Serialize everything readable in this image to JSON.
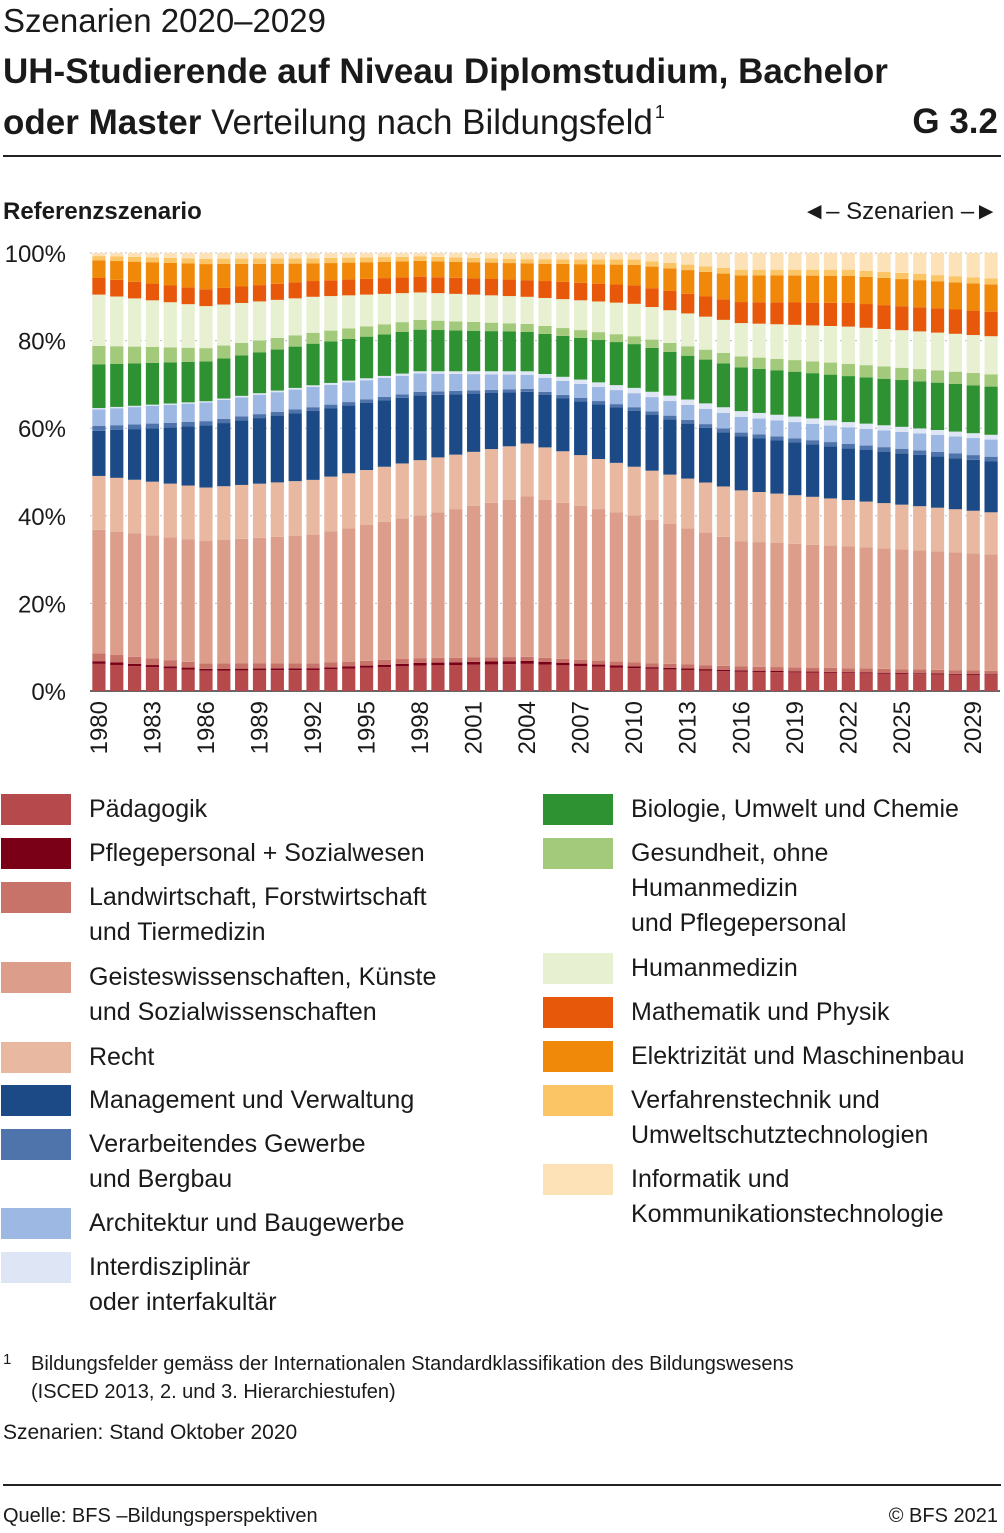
{
  "header": {
    "supertitle": "Szenarien 2020–2029",
    "title_line1": "UH-Studierende auf Niveau Diplomstudium, Bachelor",
    "title_bold2": "oder Master",
    "subtitle": "Verteilung nach Bildungsfeld",
    "footnote_mark": "1",
    "code": "G 3.2"
  },
  "panel_label": "Referenzszenario",
  "scenario_marker": "◄– Szenarien –►",
  "chart_data": {
    "type": "bar",
    "stacked": true,
    "ylim": [
      0,
      100
    ],
    "yticks": [
      "0%",
      "20%",
      "40%",
      "60%",
      "80%",
      "100%"
    ],
    "xtick_labels": [
      "1980",
      "1983",
      "1986",
      "1989",
      "1992",
      "1995",
      "1998",
      "2001",
      "2004",
      "2007",
      "2010",
      "2013",
      "2016",
      "2019",
      "2022",
      "2025",
      "2029"
    ],
    "scenario_start": 2020,
    "grid": true,
    "categories": [
      1980,
      1981,
      1982,
      1983,
      1984,
      1985,
      1986,
      1987,
      1988,
      1989,
      1990,
      1991,
      1992,
      1993,
      1994,
      1995,
      1996,
      1997,
      1998,
      1999,
      2000,
      2001,
      2002,
      2003,
      2004,
      2005,
      2006,
      2007,
      2008,
      2009,
      2010,
      2011,
      2012,
      2013,
      2014,
      2015,
      2016,
      2017,
      2018,
      2019,
      2020,
      2021,
      2022,
      2023,
      2024,
      2025,
      2026,
      2027,
      2028,
      2029,
      2030
    ],
    "keyframes": {
      "years": [
        1980,
        1986,
        1992,
        1998,
        2004,
        2010,
        2016,
        2022,
        2030
      ],
      "series": [
        {
          "name": "Pädagogik",
          "color": "#b5494c",
          "values": [
            6.2,
            4.6,
            4.8,
            5.8,
            6.2,
            5.2,
            4.4,
            4.1,
            3.6
          ]
        },
        {
          "name": "Pflegepersonal + Sozialwesen",
          "color": "#7a0017",
          "values": [
            0.6,
            0.4,
            0.4,
            0.6,
            0.7,
            0.4,
            0.3,
            0.2,
            0.2
          ]
        },
        {
          "name": "Landwirtschaft, Forstwirtschaft und Tiermedizin",
          "color": "#c8736a",
          "values": [
            1.8,
            1.2,
            1.1,
            1.1,
            0.9,
            0.9,
            0.9,
            0.9,
            0.8
          ]
        },
        {
          "name": "Geisteswissenschaften, Künste und Sozialwissenschaften",
          "color": "#dc9e8b",
          "values": [
            28.2,
            27.7,
            29.4,
            32.6,
            36.6,
            33.6,
            28.6,
            27.8,
            26.6
          ]
        },
        {
          "name": "Recht",
          "color": "#e8b8a0",
          "values": [
            12.3,
            12.1,
            12.5,
            12.6,
            12.1,
            11.1,
            11.6,
            10.6,
            9.6
          ]
        },
        {
          "name": "Management und Verwaltung",
          "color": "#1c4a86",
          "values": [
            10.3,
            14.0,
            15.8,
            14.8,
            11.8,
            12.8,
            12.3,
            11.8,
            11.6
          ]
        },
        {
          "name": "Verarbeitendes Gewerbe und Bergbau",
          "color": "#4f74ac",
          "values": [
            1.1,
            1.0,
            0.8,
            0.8,
            0.7,
            0.8,
            0.9,
            1.0,
            1.1
          ]
        },
        {
          "name": "Architektur und Baugewerbe",
          "color": "#9db8e2",
          "values": [
            3.8,
            4.2,
            4.6,
            4.2,
            3.2,
            3.2,
            3.6,
            3.8,
            3.9
          ]
        },
        {
          "name": "Interdisziplinär oder interfakultär",
          "color": "#dee6f5",
          "values": [
            0.3,
            0.3,
            0.4,
            0.5,
            0.8,
            1.2,
            1.3,
            1.2,
            1.1
          ]
        },
        {
          "name": "Biologie, Umwelt und Chemie",
          "color": "#2e9232",
          "values": [
            10.0,
            9.0,
            9.5,
            9.5,
            9.0,
            10.0,
            10.0,
            10.5,
            11.0
          ]
        },
        {
          "name": "Gesundheit, ohne Humanmedizin und Pflegepersonal",
          "color": "#a3c97a",
          "values": [
            4.2,
            3.0,
            2.5,
            2.2,
            1.8,
            1.8,
            2.5,
            2.8,
            2.8
          ]
        },
        {
          "name": "Humanmedizin",
          "color": "#e8f0d2",
          "values": [
            11.7,
            9.5,
            8.2,
            6.3,
            6.2,
            7.4,
            7.6,
            8.5,
            8.7
          ]
        },
        {
          "name": "Mathematik und Physik",
          "color": "#e8580a",
          "values": [
            3.8,
            3.8,
            3.6,
            3.6,
            3.8,
            4.2,
            4.8,
            5.4,
            5.6
          ]
        },
        {
          "name": "Elektrizität und Maschinenbau",
          "color": "#f0880a",
          "values": [
            4.0,
            5.7,
            4.0,
            3.6,
            3.8,
            4.7,
            6.1,
            6.2,
            6.2
          ]
        },
        {
          "name": "Verfahrenstechnik und Umweltschutztechnologien",
          "color": "#fbc566",
          "values": [
            1.0,
            1.2,
            1.2,
            1.0,
            1.0,
            1.2,
            1.3,
            1.4,
            1.4
          ]
        },
        {
          "name": "Informatik und Kommunikationstechnologie",
          "color": "#fde2b8",
          "values": [
            0.7,
            1.3,
            1.2,
            0.8,
            1.4,
            1.5,
            3.8,
            3.8,
            5.8
          ]
        }
      ]
    }
  },
  "legend": {
    "left": [
      {
        "label": "Pädagogik",
        "color": "#b5494c"
      },
      {
        "label": "Pflegepersonal + Sozialwesen",
        "color": "#7a0017"
      },
      {
        "label": "Landwirtschaft, Forstwirtschaft\nund Tiermedizin",
        "color": "#c8736a"
      },
      {
        "label": "Geisteswissenschaften, Künste\nund Sozialwissenschaften",
        "color": "#dc9e8b"
      },
      {
        "label": "Recht",
        "color": "#e8b8a0"
      },
      {
        "label": "Management und Verwaltung",
        "color": "#1c4a86"
      },
      {
        "label": "Verarbeitendes Gewerbe\nund Bergbau",
        "color": "#4f74ac"
      },
      {
        "label": "Architektur und Baugewerbe",
        "color": "#9db8e2"
      },
      {
        "label": "Interdisziplinär\noder interfakultär",
        "color": "#dee6f5"
      }
    ],
    "right": [
      {
        "label": "Biologie, Umwelt und Chemie",
        "color": "#2e9232"
      },
      {
        "label": "Gesundheit, ohne\nHumanmedizin\nund Pflegepersonal",
        "color": "#a3c97a"
      },
      {
        "label": "Humanmedizin",
        "color": "#e8f0d2"
      },
      {
        "label": "Mathematik und Physik",
        "color": "#e8580a"
      },
      {
        "label": "Elektrizität und Maschinenbau",
        "color": "#f0880a"
      },
      {
        "label": "Verfahrenstechnik und\nUmweltschutztechnologien",
        "color": "#fbc566"
      },
      {
        "label": "Informatik und\nKommunikationstechnologie",
        "color": "#fde2b8"
      }
    ]
  },
  "footnote": {
    "mark": "1",
    "text": "Bildungsfelder gemäss der Internationalen Standardklassifikation des Bildungswesens\n(ISCED 2013, 2. und 3. Hierarchiestufen)"
  },
  "stand": "Szenarien: Stand Oktober 2020",
  "source": "Quelle: BFS –Bildungsperspektiven",
  "copyright": "© BFS 2021"
}
